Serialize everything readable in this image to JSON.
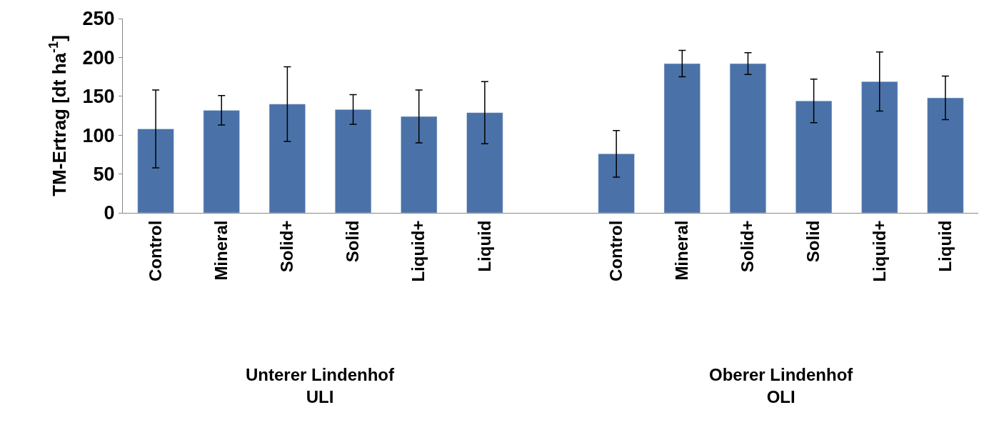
{
  "chart_data": {
    "type": "bar",
    "ylabel": "TM-Ertrag [dt ha$^{-1}$]",
    "categories": [
      "Control",
      "Mineral",
      "Solid+",
      "Solid",
      "Liquid+",
      "Liquid",
      null,
      "Control",
      "Mineral",
      "Solid+",
      "Solid",
      "Liquid+",
      "Liquid"
    ],
    "values": [
      108,
      132,
      140,
      133,
      124,
      129,
      null,
      76,
      192,
      192,
      144,
      169,
      148
    ],
    "errors": [
      50,
      19,
      48,
      19,
      34,
      40,
      null,
      30,
      17,
      14,
      28,
      38,
      28
    ],
    "color": "#4a72a8",
    "ylim": [
      0,
      250
    ],
    "yticks": [
      0,
      50,
      100,
      150,
      200,
      250
    ],
    "annotations": [
      "Unterer Lindenhof\nULI",
      "Oberer Lindenhof\nOLI"
    ]
  }
}
